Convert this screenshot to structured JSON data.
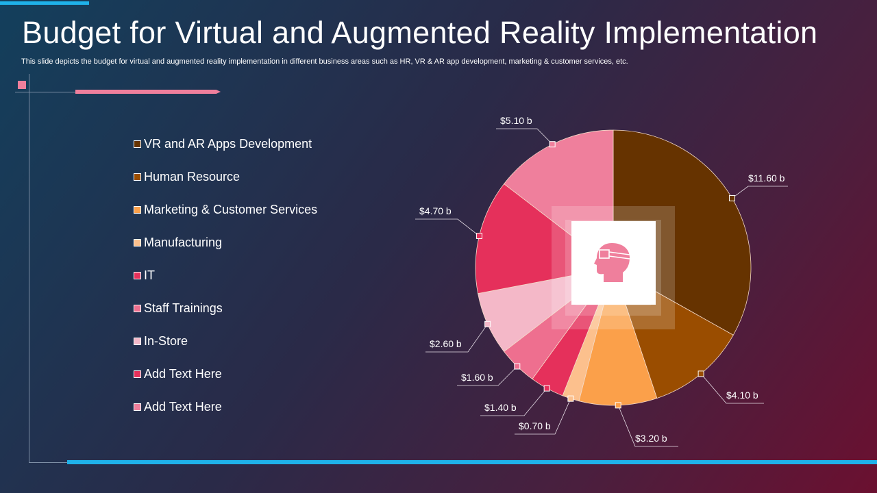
{
  "title": "Budget for Virtual and Augmented Reality Implementation",
  "subtitle": "This slide depicts the budget for virtual and augmented reality implementation in different business areas such as HR, VR & AR  app development, marketing & customer services, etc.",
  "center_icon": "vr-headset-head-icon",
  "colors": {
    "accent_blue": "#1fb2ea",
    "accent_pink": "#ef7f9c"
  },
  "chart_data": {
    "type": "pie",
    "unit_prefix": "$",
    "unit_suffix": " b",
    "categories": [
      "VR and AR Apps Development",
      "Human Resource",
      "Marketing & Customer Services",
      "Manufacturing",
      "IT",
      "Staff Trainings",
      "In-Store",
      "Add Text Here",
      "Add Text Here"
    ],
    "values": [
      11.6,
      4.1,
      3.2,
      0.7,
      1.4,
      1.6,
      2.6,
      4.7,
      5.1
    ],
    "labels": [
      "$11.60 b",
      "$4.10 b",
      "$3.20 b",
      "$0.70 b",
      "$1.40 b",
      "$1.60 b",
      "$2.60 b",
      "$4.70 b",
      "$5.10 b"
    ],
    "colors": [
      "#663300",
      "#9a4d00",
      "#fba04a",
      "#fcc08d",
      "#e5305b",
      "#ee6f8f",
      "#f4b8c8",
      "#e5305b",
      "#ef7f9c"
    ],
    "start": "top",
    "direction": "clockwise",
    "legend": "left"
  }
}
